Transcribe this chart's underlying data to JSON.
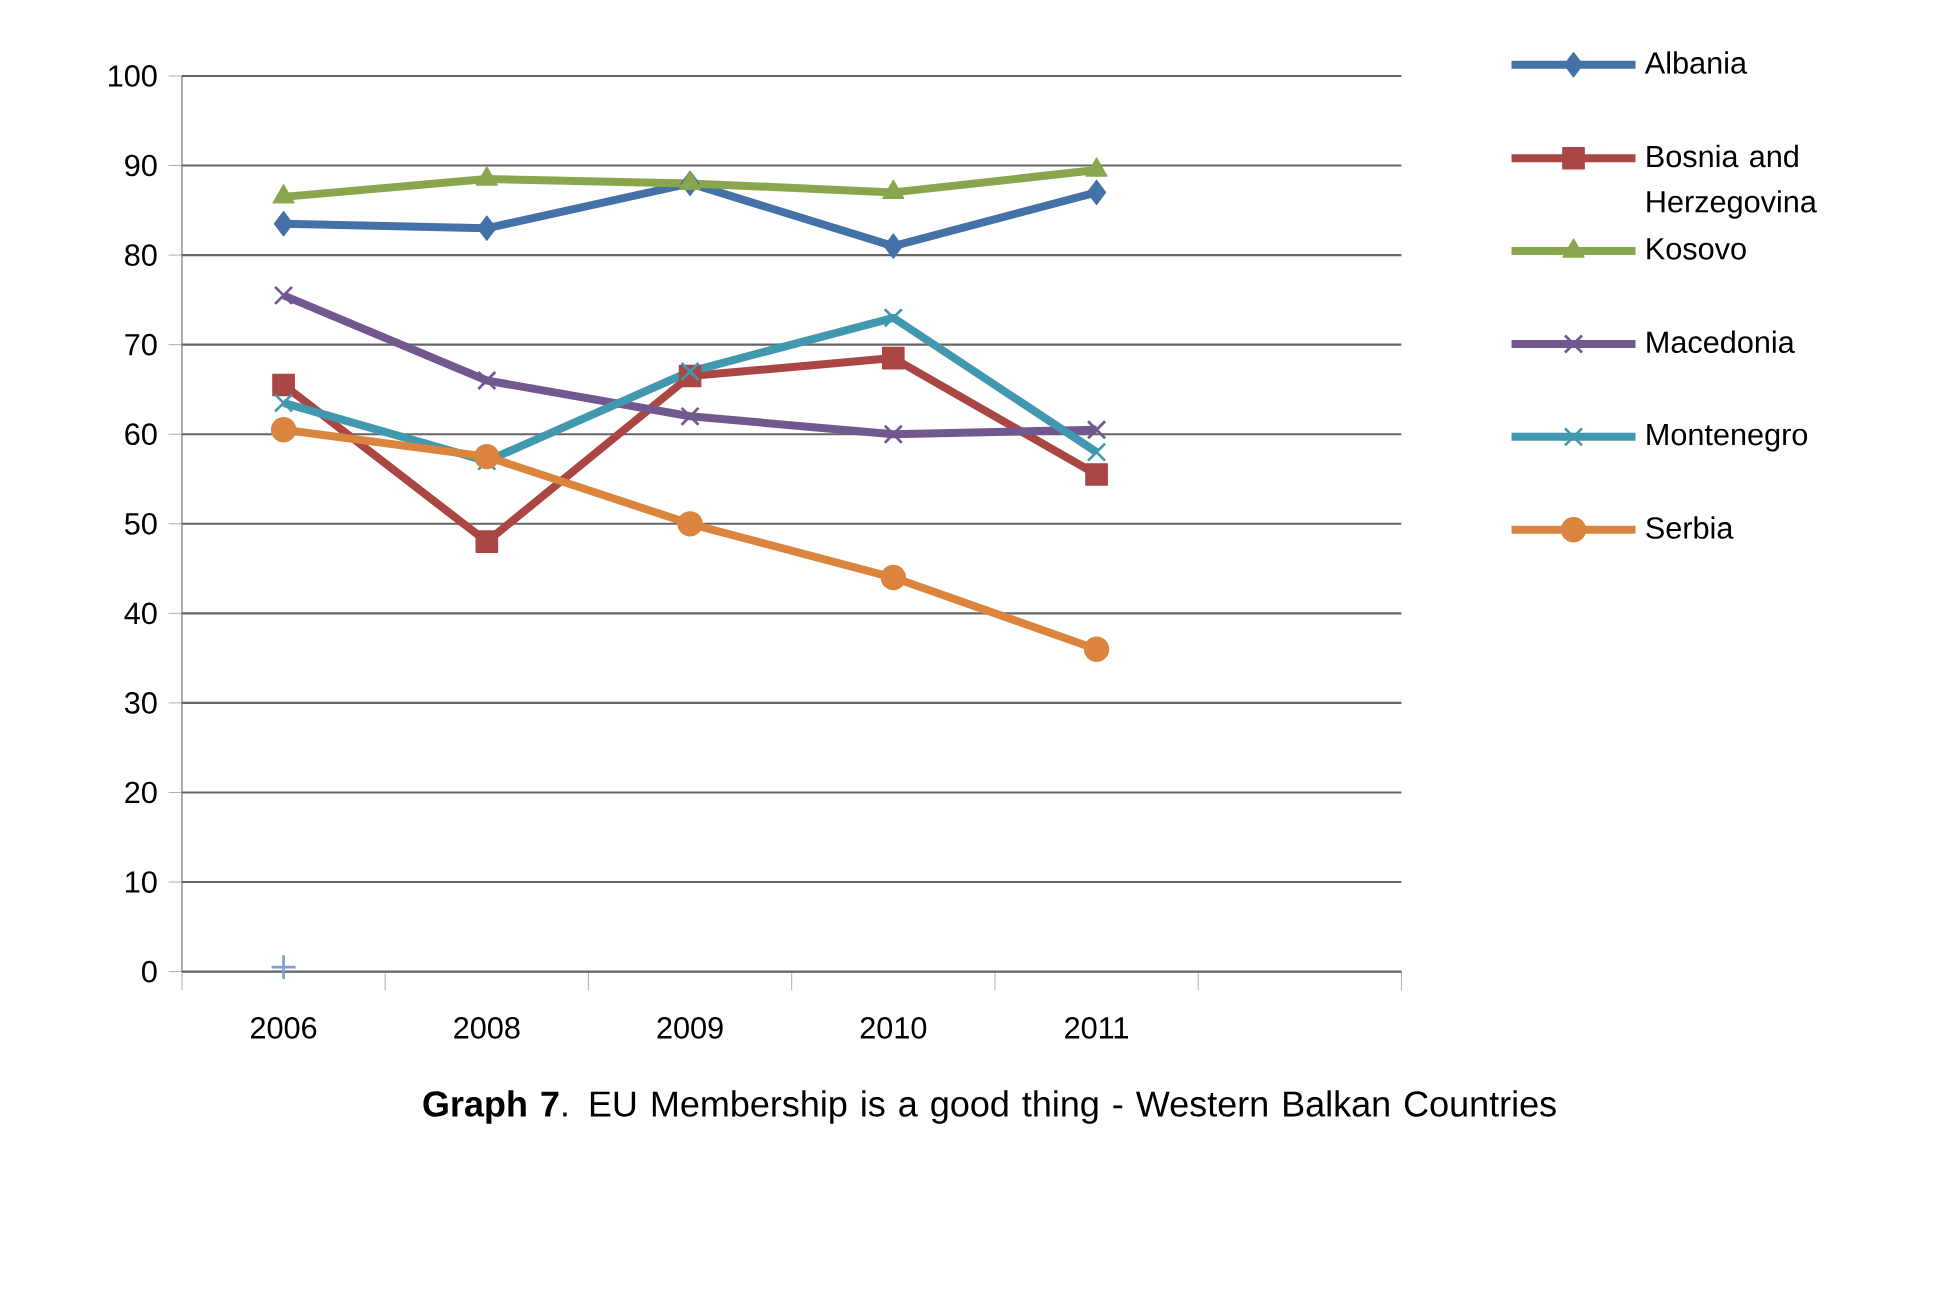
{
  "chart_data": {
    "type": "line",
    "title": "**Graph 7**. EU Membership is a good thing - Western Balkan Countries",
    "categories": [
      "2006",
      "2008",
      "2009",
      "2010",
      "2011",
      null
    ],
    "series": [
      {
        "name": "Albania",
        "color": "#4472a8",
        "marker": "diamond",
        "values": [
          83.5,
          83,
          88,
          81,
          87,
          null
        ]
      },
      {
        "name": "Bosnia and Herzegovina",
        "color": "#aa4643",
        "marker": "square",
        "values": [
          65.5,
          48,
          66.5,
          68.5,
          55.5,
          null
        ]
      },
      {
        "name": "Kosovo",
        "color": "#89a54e",
        "marker": "triangle",
        "values": [
          86.5,
          88.5,
          88,
          87,
          89.5,
          null
        ]
      },
      {
        "name": "Macedonia",
        "color": "#71588f",
        "marker": "cross",
        "values": [
          75.5,
          66,
          62,
          60,
          60.5,
          null
        ]
      },
      {
        "name": "Montenegro",
        "color": "#4198af",
        "marker": "cross",
        "values": [
          63.5,
          57,
          67,
          73,
          58,
          null
        ]
      },
      {
        "name": "Serbia",
        "color": "#db843d",
        "marker": "circle",
        "values": [
          60.5,
          57.5,
          50,
          44,
          36,
          null
        ]
      },
      {
        "type": "scatter",
        "color": "#7f9fcf",
        "marker": "plus",
        "values": [
          0.5,
          null,
          null,
          null,
          null,
          null
        ]
      }
    ],
    "ylim": [
      0,
      100
    ],
    "yticks": [
      0,
      10,
      20,
      30,
      40,
      50,
      60,
      70,
      80,
      90,
      100
    ],
    "grid": "y",
    "legend": "right"
  }
}
